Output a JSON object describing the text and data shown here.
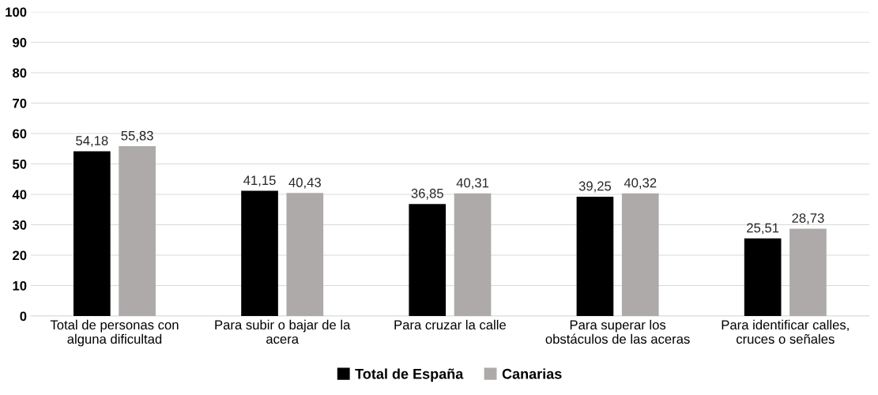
{
  "chart_data": {
    "type": "bar",
    "categories": [
      "Total de personas con\nalguna dificultad",
      "Para subir o bajar de la\nacera",
      "Para cruzar la calle",
      "Para superar los\nobstáculos de las aceras",
      "Para identificar calles,\ncruces o señales"
    ],
    "series": [
      {
        "name": "Total de España",
        "color": "#000000",
        "values": [
          54.18,
          41.15,
          36.85,
          39.25,
          25.51
        ],
        "value_labels": [
          "54,18",
          "41,15",
          "36,85",
          "39,25",
          "25,51"
        ]
      },
      {
        "name": "Canarias",
        "color": "#aeaaaa",
        "values": [
          55.83,
          40.43,
          40.31,
          40.32,
          28.73
        ],
        "value_labels": [
          "55,83",
          "40,43",
          "40,31",
          "40,32",
          "28,73"
        ]
      }
    ],
    "ylim": [
      0,
      100
    ],
    "yticks": [
      0,
      10,
      20,
      30,
      40,
      50,
      60,
      70,
      80,
      90,
      100
    ],
    "grid": "y",
    "legend": "bottom"
  }
}
